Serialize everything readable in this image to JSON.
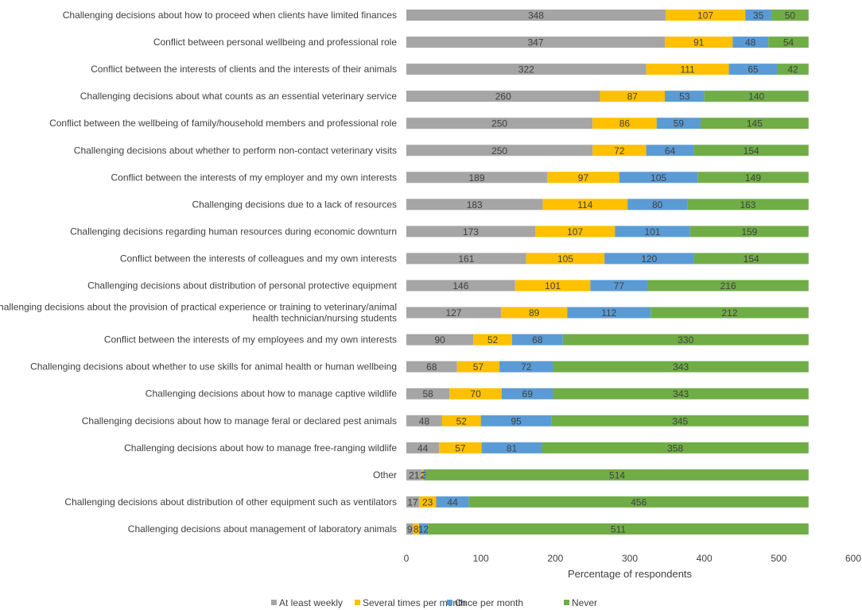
{
  "chart_data": {
    "type": "bar",
    "orientation": "horizontal",
    "stacked": true,
    "title": "",
    "xlabel": "Percentage of respondents",
    "ylabel": "",
    "xlim": [
      0,
      600
    ],
    "xticks": [
      0,
      100,
      200,
      300,
      400,
      500,
      600
    ],
    "grid": false,
    "legend_position": "bottom",
    "categories": [
      [
        "Challenging decisions about how to proceed when clients have limited finances"
      ],
      [
        "Conflict between personal wellbeing and professional role"
      ],
      [
        "Conflict between the interests of clients and the interests of their animals"
      ],
      [
        "Challenging decisions about what counts as an essential veterinary service"
      ],
      [
        "Conflict between the wellbeing of family/household members and professional role"
      ],
      [
        "Challenging decisions about whether to perform non-contact veterinary visits"
      ],
      [
        "Conflict between the interests of my employer and my own interests"
      ],
      [
        "Challenging decisions due to a lack of resources"
      ],
      [
        "Challenging decisions regarding human resources during economic downturn"
      ],
      [
        "Conflict between the interests of colleagues and my own interests"
      ],
      [
        "Challenging decisions about distribution of personal protective equipment"
      ],
      [
        "Challenging decisions about the provision of practical experience or training to veterinary/animal",
        "health technician/nursing students"
      ],
      [
        "Conflict between the interests of my employees and my own interests"
      ],
      [
        "Challenging decisions about whether to use skills for animal health or human wellbeing"
      ],
      [
        "Challenging decisions about how to manage captive wildlife"
      ],
      [
        "Challenging decisions about how to manage feral or declared pest animals"
      ],
      [
        "Challenging decisions about how to manage free-ranging wildlife"
      ],
      [
        "Other"
      ],
      [
        "Challenging decisions about distribution of other equipment such as ventilators"
      ],
      [
        "Challenging decisions about management of laboratory animals"
      ]
    ],
    "series": [
      {
        "name": "At least weekly",
        "color": "#a5a5a5",
        "values": [
          348,
          347,
          322,
          260,
          250,
          250,
          189,
          183,
          173,
          161,
          146,
          127,
          90,
          68,
          58,
          48,
          44,
          21,
          17,
          9
        ]
      },
      {
        "name": "Several times per month",
        "color": "#ffc000",
        "values": [
          107,
          91,
          111,
          87,
          86,
          72,
          97,
          114,
          107,
          105,
          101,
          89,
          52,
          57,
          70,
          52,
          57,
          2,
          23,
          8
        ]
      },
      {
        "name": "Once per month",
        "color": "#5b9bd5",
        "values": [
          35,
          48,
          65,
          53,
          59,
          64,
          105,
          80,
          101,
          120,
          77,
          112,
          68,
          72,
          69,
          95,
          81,
          3,
          44,
          12
        ]
      },
      {
        "name": "Never",
        "color": "#70ad47",
        "values": [
          50,
          54,
          42,
          140,
          145,
          154,
          149,
          163,
          159,
          154,
          216,
          212,
          330,
          343,
          343,
          345,
          358,
          514,
          456,
          511
        ]
      }
    ]
  }
}
